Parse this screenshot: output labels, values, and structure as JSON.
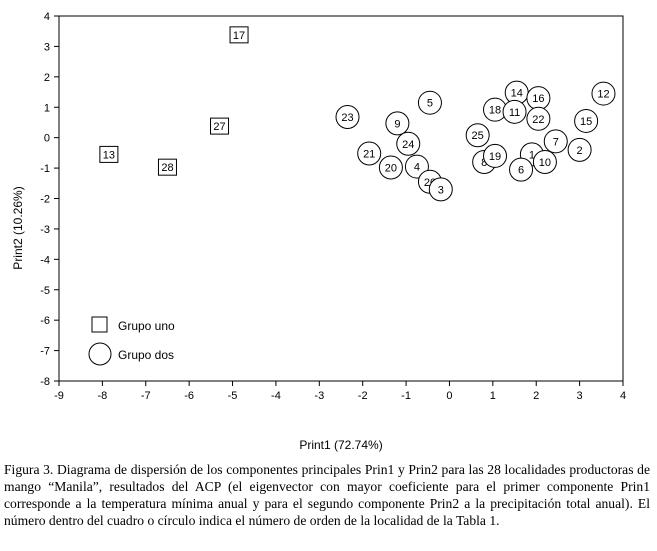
{
  "chart_data": {
    "type": "scatter",
    "xlabel": "Print1 (72.74%)",
    "ylabel": "Print2 (10.26%)",
    "xlim": [
      -9,
      4
    ],
    "ylim": [
      -8,
      4
    ],
    "xticks": [
      -9,
      -8,
      -7,
      -6,
      -5,
      -4,
      -3,
      -2,
      -1,
      0,
      1,
      2,
      3,
      4
    ],
    "yticks": [
      4,
      3,
      2,
      1,
      0,
      -1,
      -2,
      -3,
      -4,
      -5,
      -6,
      -7,
      -8
    ],
    "grid": false,
    "legend_position": "bottom-left",
    "series": [
      {
        "name": "Grupo uno",
        "marker": "square",
        "points": [
          {
            "label": "17",
            "x": -4.85,
            "y": 3.38
          },
          {
            "label": "27",
            "x": -5.3,
            "y": 0.38
          },
          {
            "label": "13",
            "x": -7.85,
            "y": -0.55
          },
          {
            "label": "28",
            "x": -6.5,
            "y": -0.97
          }
        ]
      },
      {
        "name": "Grupo dos",
        "marker": "circle",
        "points": [
          {
            "label": "23",
            "x": -2.35,
            "y": 0.68
          },
          {
            "label": "9",
            "x": -1.2,
            "y": 0.47
          },
          {
            "label": "5",
            "x": -0.45,
            "y": 1.15
          },
          {
            "label": "24",
            "x": -0.95,
            "y": -0.2
          },
          {
            "label": "21",
            "x": -1.85,
            "y": -0.52
          },
          {
            "label": "20",
            "x": -1.35,
            "y": -0.98
          },
          {
            "label": "4",
            "x": -0.75,
            "y": -0.95
          },
          {
            "label": "26",
            "x": -0.45,
            "y": -1.45
          },
          {
            "label": "3",
            "x": -0.2,
            "y": -1.7
          },
          {
            "label": "25",
            "x": 0.65,
            "y": 0.08
          },
          {
            "label": "8",
            "x": 0.8,
            "y": -0.8
          },
          {
            "label": "19",
            "x": 1.05,
            "y": -0.6
          },
          {
            "label": "18",
            "x": 1.05,
            "y": 0.92
          },
          {
            "label": "14",
            "x": 1.55,
            "y": 1.48
          },
          {
            "label": "11",
            "x": 1.5,
            "y": 0.85
          },
          {
            "label": "16",
            "x": 2.05,
            "y": 1.3
          },
          {
            "label": "22",
            "x": 2.05,
            "y": 0.62
          },
          {
            "label": "1",
            "x": 1.9,
            "y": -0.55
          },
          {
            "label": "6",
            "x": 1.65,
            "y": -1.05
          },
          {
            "label": "10",
            "x": 2.2,
            "y": -0.8
          },
          {
            "label": "7",
            "x": 2.45,
            "y": -0.12
          },
          {
            "label": "2",
            "x": 3.0,
            "y": -0.4
          },
          {
            "label": "15",
            "x": 3.15,
            "y": 0.55
          },
          {
            "label": "12",
            "x": 3.55,
            "y": 1.45
          }
        ]
      }
    ]
  },
  "caption": "Figura 3. Diagrama de dispersión de los componentes principales Prin1 y Prin2 para las 28 localidades productoras de mango “Manila”, resultados del ACP (el eigenvector con mayor coeficiente para el primer componente Prin1 corresponde a la temperatura mínima anual y para el segundo componente Prin2 a la precipitación total anual). El número dentro del cuadro o círculo indica el número de orden de la localidad de la Tabla 1."
}
